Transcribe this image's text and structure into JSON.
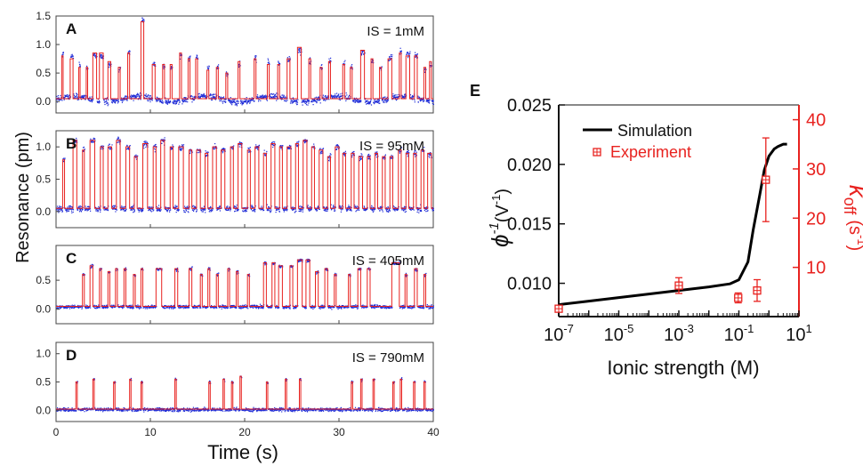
{
  "chart_data": [
    {
      "type": "line",
      "panel": "A",
      "annotation": "IS = 1mM",
      "x_range": [
        0,
        40
      ],
      "y_range": [
        -0.2,
        1.5
      ],
      "yticks": [
        "0.0",
        "0.5",
        "1.0",
        "1.5"
      ],
      "xticks": [
        "0",
        "10",
        "20",
        "30",
        "40"
      ],
      "baseline": 0.05,
      "events": [
        [
          0.6,
          0.75,
          0.8
        ],
        [
          1.5,
          1.8,
          0.75
        ],
        [
          2.4,
          2.55,
          0.6
        ],
        [
          3.2,
          3.35,
          0.6
        ],
        [
          3.9,
          4.3,
          0.85
        ],
        [
          4.6,
          5.0,
          0.85
        ],
        [
          5.5,
          5.8,
          0.7
        ],
        [
          6.6,
          6.8,
          0.6
        ],
        [
          7.6,
          7.8,
          0.85
        ],
        [
          9.0,
          9.3,
          1.4
        ],
        [
          10.2,
          10.5,
          0.65
        ],
        [
          11.3,
          11.5,
          0.65
        ],
        [
          12.1,
          12.3,
          0.65
        ],
        [
          13.1,
          13.3,
          0.85
        ],
        [
          14.0,
          14.2,
          0.75
        ],
        [
          14.8,
          15.0,
          0.75
        ],
        [
          16.0,
          16.2,
          0.55
        ],
        [
          17.0,
          17.2,
          0.6
        ],
        [
          18.0,
          18.2,
          0.5
        ],
        [
          19.3,
          19.5,
          0.7
        ],
        [
          21.0,
          21.2,
          0.75
        ],
        [
          22.4,
          22.6,
          0.65
        ],
        [
          23.5,
          23.7,
          0.65
        ],
        [
          24.5,
          24.8,
          0.75
        ],
        [
          25.6,
          26.0,
          0.95
        ],
        [
          26.8,
          27.0,
          0.75
        ],
        [
          28.0,
          28.2,
          0.6
        ],
        [
          28.9,
          29.1,
          0.7
        ],
        [
          30.4,
          30.6,
          0.65
        ],
        [
          31.2,
          31.4,
          0.6
        ],
        [
          32.3,
          32.7,
          0.9
        ],
        [
          33.4,
          33.6,
          0.75
        ],
        [
          34.3,
          34.5,
          0.6
        ],
        [
          35.2,
          35.6,
          0.75
        ],
        [
          36.4,
          36.6,
          0.85
        ],
        [
          37.1,
          37.5,
          0.8
        ],
        [
          38.0,
          38.3,
          0.8
        ],
        [
          39.0,
          39.2,
          0.6
        ],
        [
          39.6,
          39.8,
          0.7
        ]
      ]
    },
    {
      "type": "line",
      "panel": "B",
      "annotation": "IS = 95mM",
      "x_range": [
        0,
        40
      ],
      "y_range": [
        -0.25,
        1.25
      ],
      "yticks": [
        "0.0",
        "0.5",
        "1.0"
      ],
      "xticks": [
        "0",
        "10",
        "20",
        "30",
        "40"
      ],
      "baseline": 0.05,
      "events": [
        [
          0.7,
          0.9,
          0.8
        ],
        [
          1.8,
          2.2,
          1.1
        ],
        [
          2.8,
          3.0,
          0.95
        ],
        [
          3.6,
          4.1,
          1.1
        ],
        [
          4.7,
          5.0,
          1.0
        ],
        [
          5.5,
          5.9,
          1.0
        ],
        [
          6.4,
          6.8,
          1.1
        ],
        [
          7.4,
          7.8,
          1.0
        ],
        [
          8.3,
          8.6,
          0.85
        ],
        [
          9.2,
          9.7,
          1.05
        ],
        [
          10.3,
          10.6,
          1.0
        ],
        [
          11.1,
          11.5,
          1.1
        ],
        [
          12.1,
          12.4,
          1.0
        ],
        [
          13.0,
          13.5,
          1.0
        ],
        [
          14.1,
          14.4,
          0.95
        ],
        [
          14.9,
          15.3,
          0.95
        ],
        [
          15.8,
          16.1,
          0.9
        ],
        [
          16.6,
          17.0,
          1.0
        ],
        [
          17.5,
          17.9,
          0.95
        ],
        [
          18.5,
          18.8,
          1.0
        ],
        [
          19.3,
          19.7,
          1.05
        ],
        [
          20.3,
          20.6,
          0.95
        ],
        [
          21.1,
          21.5,
          1.0
        ],
        [
          22.0,
          22.3,
          0.9
        ],
        [
          22.8,
          23.2,
          1.05
        ],
        [
          23.7,
          24.0,
          1.0
        ],
        [
          24.5,
          24.9,
          1.0
        ],
        [
          25.4,
          25.7,
          1.05
        ],
        [
          26.2,
          26.6,
          1.1
        ],
        [
          27.1,
          27.4,
          1.0
        ],
        [
          27.9,
          28.3,
          0.95
        ],
        [
          28.8,
          29.1,
          0.85
        ],
        [
          29.6,
          30.0,
          1.0
        ],
        [
          30.4,
          30.7,
          0.9
        ],
        [
          31.3,
          31.6,
          0.9
        ],
        [
          32.1,
          32.5,
          0.85
        ],
        [
          33.0,
          33.3,
          0.85
        ],
        [
          33.8,
          34.1,
          0.9
        ],
        [
          34.6,
          34.9,
          0.85
        ],
        [
          35.4,
          35.7,
          0.85
        ],
        [
          36.3,
          36.6,
          0.95
        ],
        [
          37.1,
          37.4,
          0.9
        ],
        [
          37.9,
          38.2,
          0.9
        ],
        [
          38.7,
          39.0,
          0.95
        ],
        [
          39.4,
          39.8,
          0.9
        ]
      ]
    },
    {
      "type": "line",
      "panel": "C",
      "annotation": "IS = 405mM",
      "x_range": [
        0,
        40
      ],
      "y_range": [
        -0.25,
        1.1
      ],
      "yticks": [
        "0.0",
        "0.5"
      ],
      "xticks": [
        "0",
        "10",
        "20",
        "30",
        "40"
      ],
      "baseline": 0.05,
      "events": [
        [
          2.8,
          3.0,
          0.6
        ],
        [
          3.6,
          3.9,
          0.75
        ],
        [
          4.6,
          4.8,
          0.7
        ],
        [
          5.5,
          5.7,
          0.65
        ],
        [
          6.3,
          6.5,
          0.7
        ],
        [
          7.2,
          7.4,
          0.7
        ],
        [
          8.2,
          8.4,
          0.6
        ],
        [
          9.0,
          9.2,
          0.7
        ],
        [
          10.6,
          11.2,
          0.7
        ],
        [
          12.6,
          12.9,
          0.7
        ],
        [
          14.1,
          14.4,
          0.7
        ],
        [
          15.3,
          15.5,
          0.6
        ],
        [
          16.1,
          16.3,
          0.7
        ],
        [
          17.0,
          17.2,
          0.6
        ],
        [
          18.2,
          18.4,
          0.7
        ],
        [
          19.1,
          19.3,
          0.65
        ],
        [
          20.3,
          20.5,
          0.6
        ],
        [
          22.0,
          22.3,
          0.8
        ],
        [
          22.9,
          23.2,
          0.8
        ],
        [
          23.6,
          24.0,
          0.75
        ],
        [
          24.8,
          25.1,
          0.75
        ],
        [
          25.6,
          26.1,
          0.85
        ],
        [
          26.5,
          26.9,
          0.85
        ],
        [
          27.5,
          27.8,
          0.65
        ],
        [
          28.5,
          28.8,
          0.7
        ],
        [
          29.5,
          29.7,
          0.6
        ],
        [
          31.0,
          31.2,
          0.6
        ],
        [
          32.0,
          32.3,
          0.7
        ],
        [
          33.0,
          33.3,
          0.7
        ],
        [
          35.6,
          36.4,
          0.8
        ],
        [
          37.0,
          37.2,
          0.6
        ],
        [
          38.0,
          38.3,
          0.7
        ],
        [
          39.0,
          39.2,
          0.6
        ]
      ]
    },
    {
      "type": "line",
      "panel": "D",
      "annotation": "IS = 790mM",
      "x_range": [
        0,
        40
      ],
      "y_range": [
        -0.2,
        1.2
      ],
      "yticks": [
        "0.0",
        "0.5",
        "1.0"
      ],
      "xticks": [
        "0",
        "10",
        "20",
        "30",
        "40"
      ],
      "baseline": 0.02,
      "events": [
        [
          2.1,
          2.25,
          0.5
        ],
        [
          3.9,
          4.05,
          0.55
        ],
        [
          6.1,
          6.25,
          0.5
        ],
        [
          7.8,
          7.95,
          0.55
        ],
        [
          9.0,
          9.15,
          0.5
        ],
        [
          12.6,
          12.75,
          0.55
        ],
        [
          16.2,
          16.35,
          0.5
        ],
        [
          17.7,
          17.85,
          0.55
        ],
        [
          18.6,
          18.75,
          0.5
        ],
        [
          19.5,
          19.65,
          0.6
        ],
        [
          22.3,
          22.45,
          0.5
        ],
        [
          24.3,
          24.45,
          0.55
        ],
        [
          25.8,
          25.95,
          0.55
        ],
        [
          31.3,
          31.45,
          0.5
        ],
        [
          32.3,
          32.45,
          0.55
        ],
        [
          33.6,
          33.75,
          0.55
        ],
        [
          35.7,
          35.85,
          0.5
        ],
        [
          36.5,
          36.65,
          0.55
        ],
        [
          37.9,
          38.05,
          0.5
        ],
        [
          39.0,
          39.15,
          0.5
        ]
      ]
    },
    {
      "type": "scatter",
      "panel": "E",
      "x_scale": "log",
      "x_range": [
        1e-07,
        10
      ],
      "xlabel": "Ionic strength (M)",
      "ylabel_left_symbol": "ϕ",
      "ylabel_left_sup": "-1",
      "ylabel_left_unit": "(V",
      "ylabel_left_unit_sup": "-1",
      "ylabel_left_close": ")",
      "ylabel_right": "k",
      "ylabel_right_sub": "off",
      "ylabel_right_unit": "(s",
      "ylabel_right_unit_sup": "-1",
      "ylabel_right_close": ")",
      "ylim_left": [
        0.0072,
        0.025
      ],
      "ylim_right": [
        0,
        43
      ],
      "xticks": [
        {
          "base": "10",
          "exp": "-7"
        },
        {
          "base": "10",
          "exp": "-5"
        },
        {
          "base": "10",
          "exp": "-3"
        },
        {
          "base": "10",
          "exp": "-1"
        },
        {
          "base": "10",
          "exp": "1"
        }
      ],
      "yticks_left": [
        "0.010",
        "0.015",
        "0.020",
        "0.025"
      ],
      "yticks_right": [
        "10",
        "20",
        "30",
        "40"
      ],
      "series": [
        {
          "name": "Simulation",
          "axis": "left",
          "x": [
            1e-07,
            1e-06,
            1e-05,
            0.0001,
            0.001,
            0.01,
            0.05,
            0.1,
            0.2,
            0.3,
            0.5,
            0.7,
            1.0,
            1.5,
            2.0,
            3.0,
            4.0
          ],
          "y": [
            0.0082,
            0.0085,
            0.0088,
            0.0091,
            0.0094,
            0.0097,
            0.00995,
            0.0103,
            0.0118,
            0.0145,
            0.0175,
            0.0195,
            0.0207,
            0.0213,
            0.0215,
            0.0217,
            0.0217
          ]
        },
        {
          "name": "Experiment",
          "axis": "right",
          "x": [
            1e-07,
            0.001,
            0.095,
            0.405,
            0.79
          ],
          "y": [
            1.6,
            6.3,
            3.8,
            5.3,
            27.8
          ],
          "yerr": [
            0.4,
            1.6,
            1.0,
            2.2,
            8.5
          ]
        }
      ],
      "colors": {
        "simulation": "#000000",
        "experiment": "#e8221f"
      }
    }
  ],
  "shared": {
    "ylabel": "Resonance (pm)",
    "xlabel": "Time (s)",
    "panel_e_label": "E",
    "colors": {
      "trace": "#e8221f",
      "scatter": "#1f2bd6"
    }
  }
}
